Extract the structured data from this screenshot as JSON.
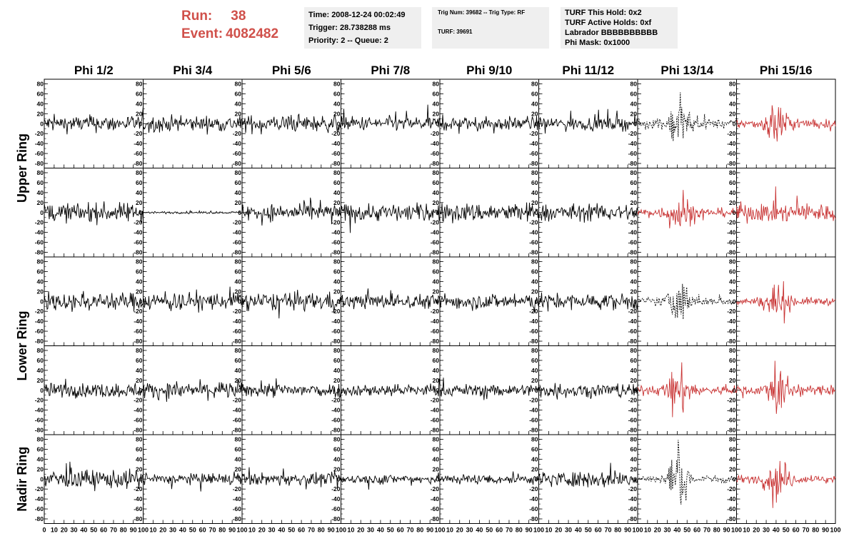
{
  "header": {
    "run_label": "Run:",
    "run_value": "38",
    "event_label": "Event:",
    "event_value": "4082482",
    "info1": {
      "time": "Time: 2008-12-24 00:02:49",
      "trigger": "Trigger: 28.738288 ms",
      "priority": "Priority: 2 -- Queue: 2"
    },
    "info2": {
      "trig": "Trig Num: 39682 -- Trig Type: RF",
      "turf": "TURF: 39691"
    },
    "info3": {
      "hold": "TURF This Hold: 0x2",
      "active": "TURF Active Holds: 0xf",
      "labrador": "Labrador BBBBBBBBBB",
      "phimask": "Phi Mask: 0x1000"
    }
  },
  "colors": {
    "normal": "#000000",
    "triggered": "#c83232",
    "text_red": "#d0504a",
    "box_bg": "#efefef"
  },
  "chart_data": {
    "type": "line",
    "columns": [
      "Phi 1/2",
      "Phi 3/4",
      "Phi 5/6",
      "Phi 7/8",
      "Phi 9/10",
      "Phi 11/12",
      "Phi 13/14",
      "Phi 15/16"
    ],
    "ring_labels": [
      {
        "label": "Upper Ring",
        "rows": [
          0,
          1
        ]
      },
      {
        "label": "Lower Ring",
        "rows": [
          2,
          3
        ]
      },
      {
        "label": "Nadir Ring",
        "rows": [
          4
        ]
      }
    ],
    "xlim": [
      0,
      100
    ],
    "xticks": [
      0,
      10,
      20,
      30,
      40,
      50,
      60,
      70,
      80,
      90,
      100
    ],
    "ylim": [
      -85,
      85
    ],
    "yticks": [
      -80,
      -60,
      -40,
      -20,
      0,
      20,
      40,
      60,
      80
    ],
    "panels": [
      [
        {
          "amp": 15,
          "style": "normal"
        },
        {
          "amp": 14,
          "style": "normal"
        },
        {
          "amp": 15,
          "style": "normal"
        },
        {
          "amp": 13,
          "style": "normal"
        },
        {
          "amp": 12,
          "style": "normal"
        },
        {
          "amp": 12,
          "style": "normal"
        },
        {
          "amp": 16,
          "style": "dotted",
          "burst": true
        },
        {
          "amp": 16,
          "style": "triggered",
          "burst": true
        }
      ],
      [
        {
          "amp": 17,
          "style": "normal"
        },
        {
          "amp": 2,
          "style": "normal"
        },
        {
          "amp": 15,
          "style": "normal"
        },
        {
          "amp": 16,
          "style": "normal"
        },
        {
          "amp": 17,
          "style": "normal"
        },
        {
          "amp": 15,
          "style": "normal"
        },
        {
          "amp": 16,
          "style": "triggered",
          "burst": true
        },
        {
          "amp": 17,
          "style": "triggered"
        }
      ],
      [
        {
          "amp": 16,
          "style": "normal"
        },
        {
          "amp": 16,
          "style": "normal"
        },
        {
          "amp": 16,
          "style": "normal"
        },
        {
          "amp": 13,
          "style": "normal"
        },
        {
          "amp": 14,
          "style": "normal"
        },
        {
          "amp": 14,
          "style": "normal"
        },
        {
          "amp": 14,
          "style": "dotted",
          "burst": true
        },
        {
          "amp": 14,
          "style": "triggered",
          "burst": true
        }
      ],
      [
        {
          "amp": 13,
          "style": "normal"
        },
        {
          "amp": 15,
          "style": "normal"
        },
        {
          "amp": 13,
          "style": "normal"
        },
        {
          "amp": 11,
          "style": "normal"
        },
        {
          "amp": 11,
          "style": "normal"
        },
        {
          "amp": 13,
          "style": "normal"
        },
        {
          "amp": 16,
          "style": "triggered",
          "burst": true
        },
        {
          "amp": 16,
          "style": "triggered",
          "burst": true
        }
      ],
      [
        {
          "amp": 17,
          "style": "normal"
        },
        {
          "amp": 10,
          "style": "normal"
        },
        {
          "amp": 11,
          "style": "normal"
        },
        {
          "amp": 9,
          "style": "normal"
        },
        {
          "amp": 9,
          "style": "normal"
        },
        {
          "amp": 14,
          "style": "normal"
        },
        {
          "amp": 14,
          "style": "dotted",
          "burst": true
        },
        {
          "amp": 14,
          "style": "triggered",
          "burst": true
        }
      ]
    ]
  }
}
